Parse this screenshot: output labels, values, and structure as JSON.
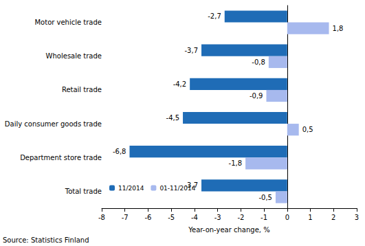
{
  "chart_data": {
    "type": "bar",
    "orientation": "horizontal",
    "categories": [
      "Motor vehicle trade",
      "Wholesale trade",
      "Retail trade",
      "Daily consumer goods trade",
      "Department store trade",
      "Total trade"
    ],
    "series": [
      {
        "name": "11/2014",
        "color": "#1f6cb6",
        "values": [
          -2.7,
          -3.7,
          -4.2,
          -4.5,
          -6.8,
          -3.7
        ],
        "value_labels": [
          "-2,7",
          "-3,7",
          "-4,2",
          "-4,5",
          "-6,8",
          "-3,7"
        ]
      },
      {
        "name": "01-11/2014",
        "color": "#a7b9ee",
        "values": [
          1.8,
          -0.8,
          -0.9,
          0.5,
          -1.8,
          -0.5
        ],
        "value_labels": [
          "1,8",
          "-0,8",
          "-0,9",
          "0,5",
          "-1,8",
          "-0,5"
        ]
      }
    ],
    "x_label": "Year-on-year change, %",
    "xlim": [
      -8,
      3
    ],
    "xticks": [
      -8,
      -7,
      -6,
      -5,
      -4,
      -3,
      -2,
      -1,
      0,
      1,
      2,
      3
    ],
    "grid": false,
    "legend": "lower left",
    "data_labels": true,
    "source": "Source: Statistics Finland"
  }
}
